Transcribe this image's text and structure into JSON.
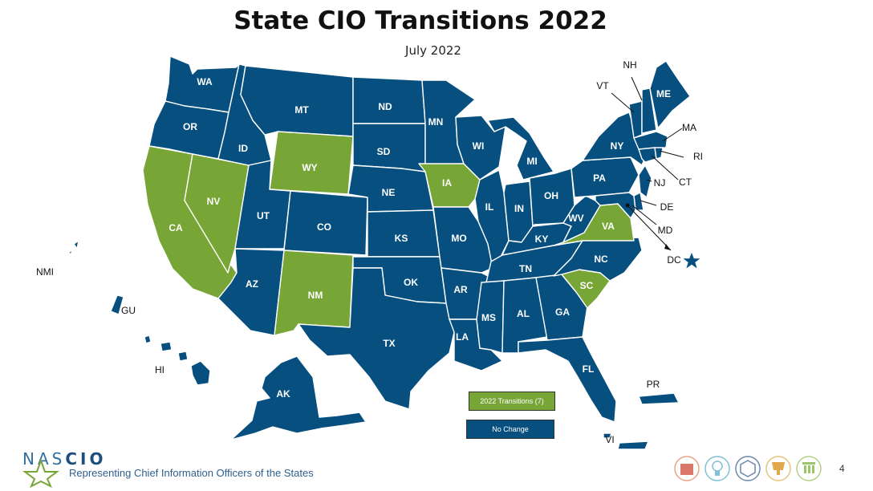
{
  "title": "State CIO Transitions 2022",
  "subtitle": "July 2022",
  "colors": {
    "transition": "#77a536",
    "no_change": "#064f7f",
    "border": "#ffffff"
  },
  "legend": {
    "transitions_label": "2022 Transitions (7)",
    "no_change_label": "No Change"
  },
  "states": {
    "WA": "WA",
    "OR": "OR",
    "CA": "CA",
    "NV": "NV",
    "ID": "ID",
    "MT": "MT",
    "WY": "WY",
    "UT": "UT",
    "AZ": "AZ",
    "CO": "CO",
    "NM": "NM",
    "ND": "ND",
    "SD": "SD",
    "NE": "NE",
    "KS": "KS",
    "OK": "OK",
    "TX": "TX",
    "MN": "MN",
    "IA": "IA",
    "MO": "MO",
    "AR": "AR",
    "LA": "LA",
    "WI": "WI",
    "IL": "IL",
    "MI": "MI",
    "IN": "IN",
    "OH": "OH",
    "KY": "KY",
    "TN": "TN",
    "MS": "MS",
    "AL": "AL",
    "GA": "GA",
    "FL": "FL",
    "SC": "SC",
    "NC": "NC",
    "VA": "VA",
    "WV": "WV",
    "PA": "PA",
    "NY": "NY",
    "VT": "VT",
    "NH": "NH",
    "ME": "ME",
    "MA": "MA",
    "RI": "RI",
    "CT": "CT",
    "NJ": "NJ",
    "DE": "DE",
    "MD": "MD",
    "DC": "DC",
    "AK": "AK",
    "HI": "HI",
    "PR": "PR",
    "VI": "VI",
    "GU": "GU",
    "NMI": "NMI"
  },
  "transition_states": [
    "CA",
    "NV",
    "WY",
    "NM",
    "IA",
    "VA",
    "SC"
  ],
  "footer": {
    "logo_part1": "NAS",
    "logo_part2": "CIO",
    "tagline": "Representing Chief Information Officers of the States",
    "page_number": "4"
  },
  "footer_icons": [
    "building-icon",
    "lightbulb-icon",
    "network-icon",
    "trophy-icon",
    "column-icon"
  ]
}
